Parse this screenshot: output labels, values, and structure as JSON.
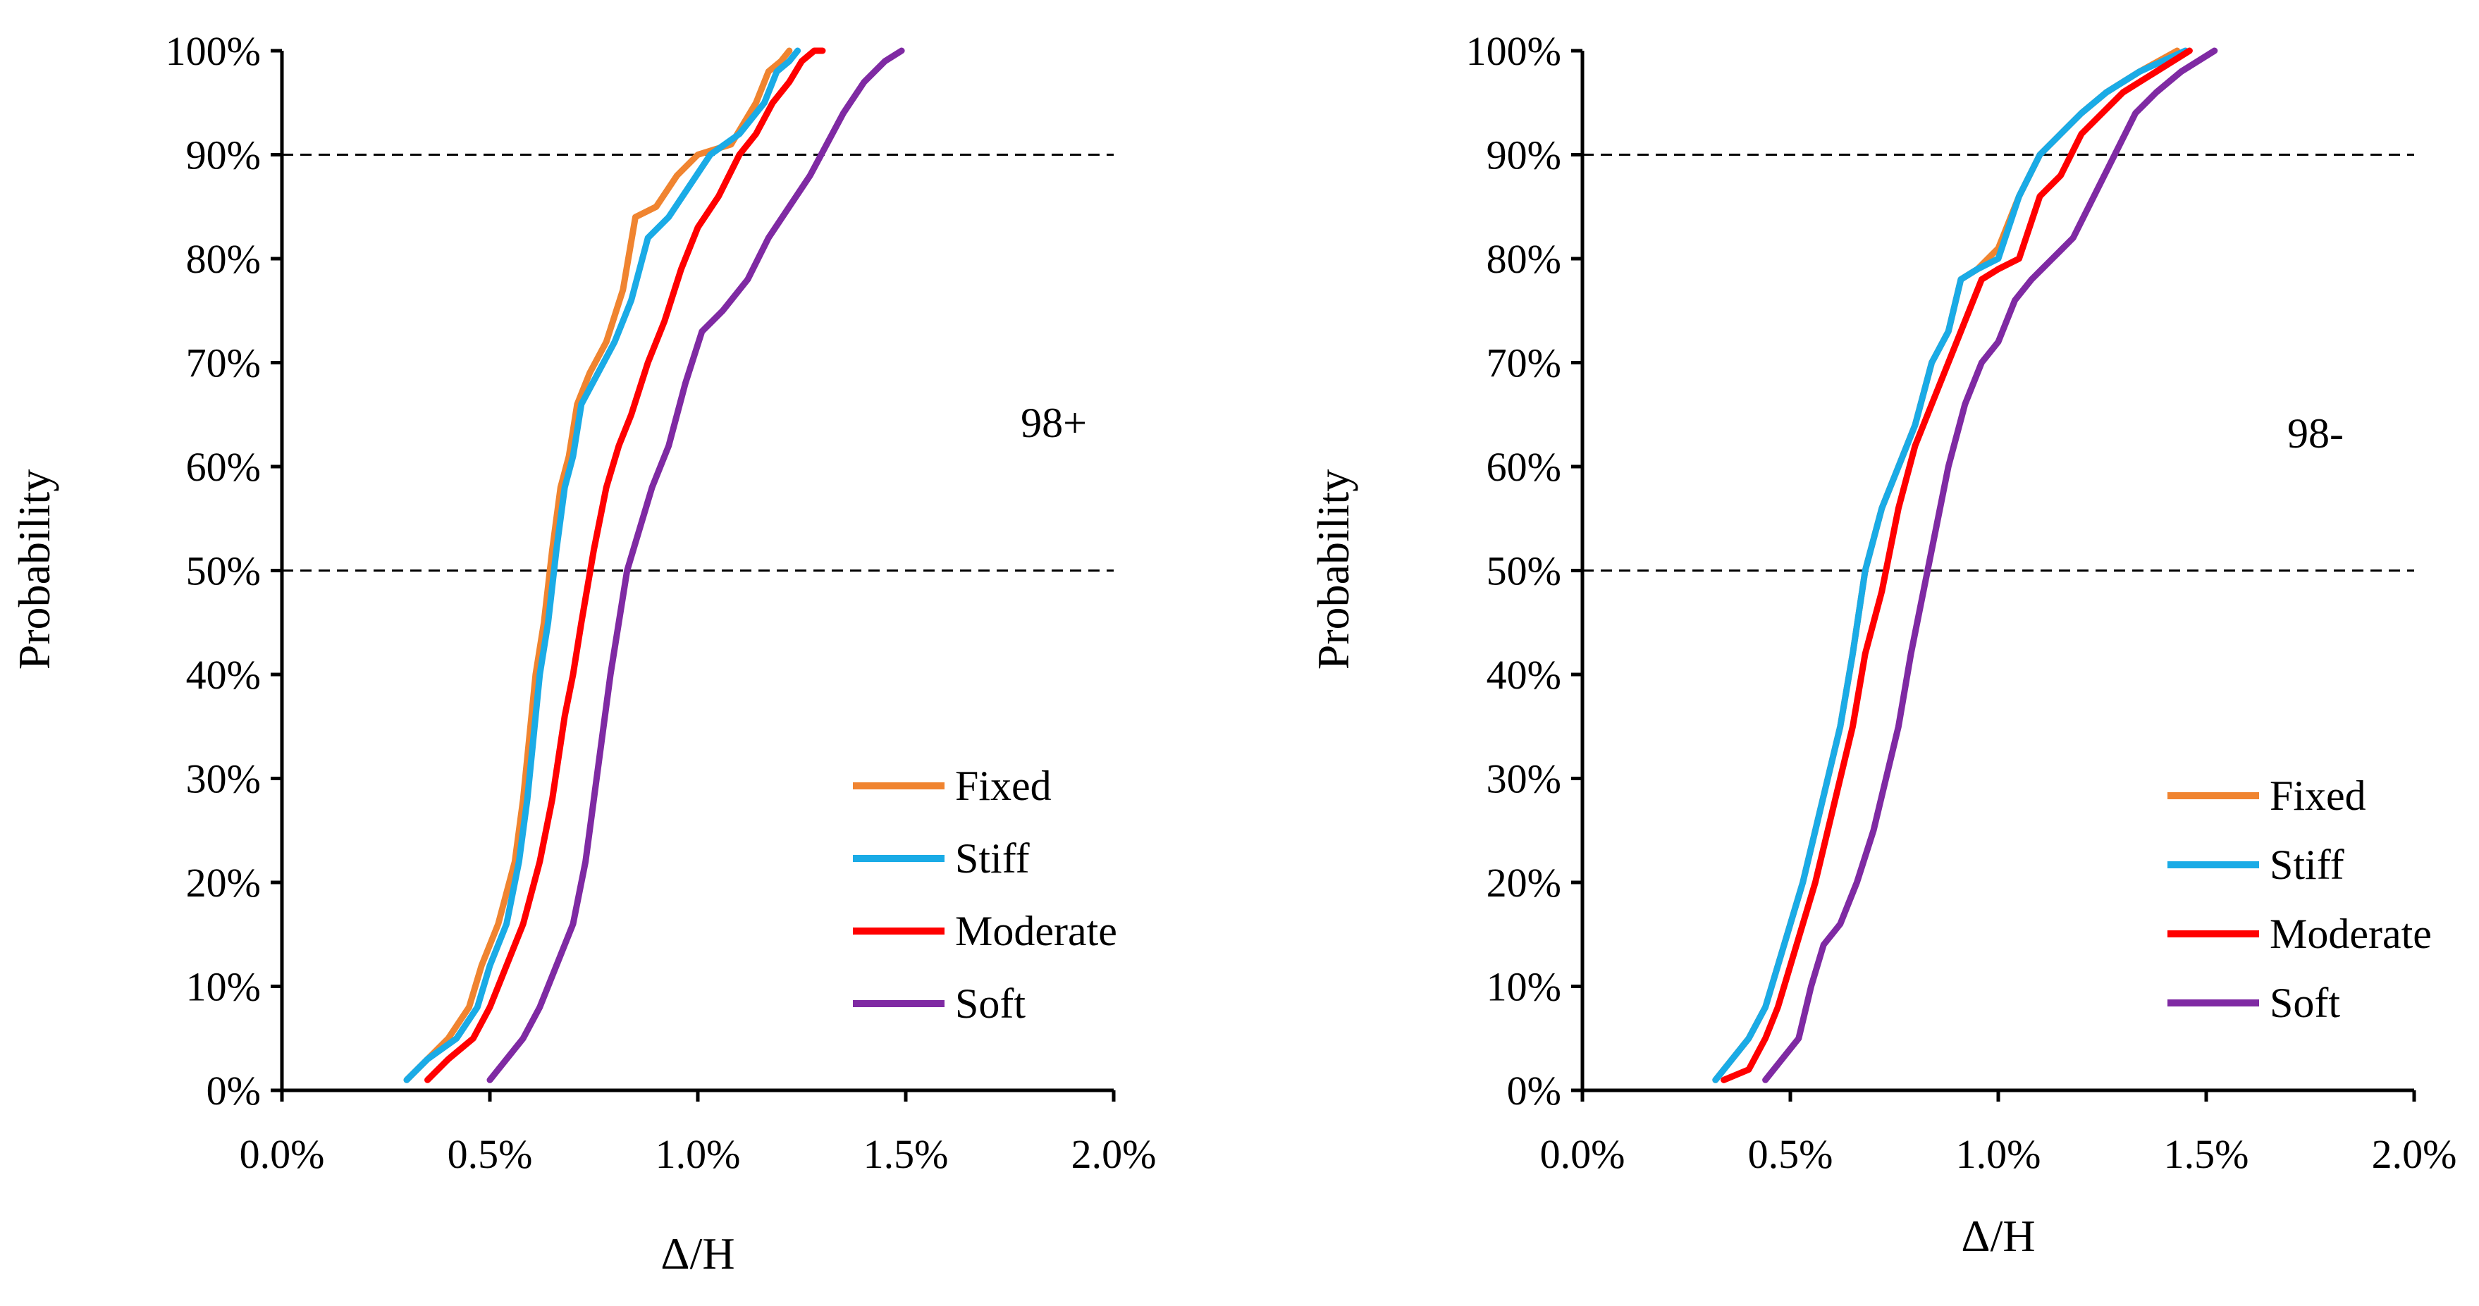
{
  "chart_data": [
    {
      "type": "line",
      "annotation": "98+",
      "xlabel": "Δ/H",
      "ylabel": "Probability",
      "xlim": [
        0,
        2
      ],
      "ylim": [
        0,
        100
      ],
      "x_ticks": [
        0.0,
        0.5,
        1.0,
        1.5,
        2.0
      ],
      "x_tick_labels": [
        "0.0%",
        "0.5%",
        "1.0%",
        "1.5%",
        "2.0%"
      ],
      "y_ticks": [
        0,
        10,
        20,
        30,
        40,
        50,
        60,
        70,
        80,
        90,
        100
      ],
      "y_tick_labels": [
        "0%",
        "10%",
        "20%",
        "30%",
        "40%",
        "50%",
        "60%",
        "70%",
        "80%",
        "90%",
        "100%"
      ],
      "reference_lines": [
        90,
        50
      ],
      "legend_position": "bottom-right",
      "series": [
        {
          "name": "Fixed",
          "color": "#F08430",
          "x": [
            0.3,
            0.35,
            0.4,
            0.45,
            0.48,
            0.52,
            0.56,
            0.58,
            0.6,
            0.61,
            0.63,
            0.65,
            0.67,
            0.69,
            0.71,
            0.74,
            0.78,
            0.82,
            0.85,
            0.9,
            0.95,
            1.0,
            1.08,
            1.14,
            1.17,
            1.2,
            1.22
          ],
          "y": [
            1,
            3,
            5,
            8,
            12,
            16,
            22,
            28,
            36,
            40,
            45,
            52,
            58,
            61,
            66,
            69,
            72,
            77,
            84,
            85,
            88,
            90,
            91,
            95,
            98,
            99,
            100
          ]
        },
        {
          "name": "Stiff",
          "color": "#1AABE6",
          "x": [
            0.3,
            0.35,
            0.42,
            0.47,
            0.5,
            0.54,
            0.57,
            0.59,
            0.61,
            0.62,
            0.64,
            0.66,
            0.68,
            0.7,
            0.72,
            0.76,
            0.8,
            0.84,
            0.88,
            0.93,
            0.98,
            1.03,
            1.1,
            1.16,
            1.19,
            1.22,
            1.24
          ],
          "y": [
            1,
            3,
            5,
            8,
            12,
            16,
            22,
            28,
            36,
            40,
            45,
            52,
            58,
            61,
            66,
            69,
            72,
            76,
            82,
            84,
            87,
            90,
            92,
            95,
            98,
            99,
            100
          ]
        },
        {
          "name": "Moderate",
          "color": "#FF0000",
          "x": [
            0.35,
            0.4,
            0.46,
            0.5,
            0.54,
            0.58,
            0.62,
            0.65,
            0.68,
            0.7,
            0.72,
            0.75,
            0.78,
            0.81,
            0.84,
            0.88,
            0.92,
            0.96,
            1.0,
            1.05,
            1.1,
            1.14,
            1.18,
            1.22,
            1.25,
            1.28,
            1.3
          ],
          "y": [
            1,
            3,
            5,
            8,
            12,
            16,
            22,
            28,
            36,
            40,
            45,
            52,
            58,
            62,
            65,
            70,
            74,
            79,
            83,
            86,
            90,
            92,
            95,
            97,
            99,
            100,
            100
          ]
        },
        {
          "name": "Soft",
          "color": "#7F2AA3",
          "x": [
            0.5,
            0.54,
            0.58,
            0.62,
            0.66,
            0.7,
            0.73,
            0.75,
            0.77,
            0.79,
            0.81,
            0.83,
            0.86,
            0.89,
            0.93,
            0.97,
            1.01,
            1.06,
            1.12,
            1.17,
            1.22,
            1.27,
            1.31,
            1.35,
            1.4,
            1.45,
            1.49
          ],
          "y": [
            1,
            3,
            5,
            8,
            12,
            16,
            22,
            28,
            34,
            40,
            45,
            50,
            54,
            58,
            62,
            68,
            73,
            75,
            78,
            82,
            85,
            88,
            91,
            94,
            97,
            99,
            100
          ]
        }
      ]
    },
    {
      "type": "line",
      "annotation": "98-",
      "xlabel": "Δ/H",
      "ylabel": "Probability",
      "xlim": [
        0,
        2
      ],
      "ylim": [
        0,
        100
      ],
      "x_ticks": [
        0.0,
        0.5,
        1.0,
        1.5,
        2.0
      ],
      "x_tick_labels": [
        "0.0%",
        "0.5%",
        "1.0%",
        "1.5%",
        "2.0%"
      ],
      "y_ticks": [
        0,
        10,
        20,
        30,
        40,
        50,
        60,
        70,
        80,
        90,
        100
      ],
      "y_tick_labels": [
        "0%",
        "10%",
        "20%",
        "30%",
        "40%",
        "50%",
        "60%",
        "70%",
        "80%",
        "90%",
        "100%"
      ],
      "reference_lines": [
        90,
        50
      ],
      "legend_position": "bottom-right",
      "series": [
        {
          "name": "Fixed",
          "color": "#F08430",
          "x": [
            0.32,
            0.36,
            0.4,
            0.44,
            0.47,
            0.5,
            0.53,
            0.56,
            0.59,
            0.62,
            0.65,
            0.68,
            0.72,
            0.76,
            0.8,
            0.84,
            0.88,
            0.91,
            0.95,
            1.0,
            1.05,
            1.1,
            1.15,
            1.2,
            1.26,
            1.34,
            1.43
          ],
          "y": [
            1,
            3,
            5,
            8,
            12,
            16,
            20,
            25,
            30,
            35,
            42,
            50,
            56,
            60,
            64,
            70,
            73,
            78,
            79,
            81,
            86,
            90,
            92,
            94,
            96,
            98,
            100
          ]
        },
        {
          "name": "Stiff",
          "color": "#1AABE6",
          "x": [
            0.32,
            0.36,
            0.4,
            0.44,
            0.47,
            0.5,
            0.53,
            0.56,
            0.59,
            0.62,
            0.65,
            0.68,
            0.72,
            0.76,
            0.8,
            0.84,
            0.88,
            0.91,
            0.95,
            1.0,
            1.05,
            1.1,
            1.15,
            1.2,
            1.26,
            1.34,
            1.45
          ],
          "y": [
            1,
            3,
            5,
            8,
            12,
            16,
            20,
            25,
            30,
            35,
            42,
            50,
            56,
            60,
            64,
            70,
            73,
            78,
            79,
            80,
            86,
            90,
            92,
            94,
            96,
            98,
            100
          ]
        },
        {
          "name": "Moderate",
          "color": "#FF0000",
          "x": [
            0.34,
            0.4,
            0.44,
            0.47,
            0.5,
            0.53,
            0.56,
            0.59,
            0.62,
            0.65,
            0.68,
            0.72,
            0.76,
            0.8,
            0.84,
            0.88,
            0.92,
            0.96,
            1.0,
            1.05,
            1.1,
            1.15,
            1.2,
            1.25,
            1.3,
            1.38,
            1.46
          ],
          "y": [
            1,
            2,
            5,
            8,
            12,
            16,
            20,
            25,
            30,
            35,
            42,
            48,
            56,
            62,
            66,
            70,
            74,
            78,
            79,
            80,
            86,
            88,
            92,
            94,
            96,
            98,
            100
          ]
        },
        {
          "name": "Soft",
          "color": "#7F2AA3",
          "x": [
            0.44,
            0.48,
            0.52,
            0.55,
            0.58,
            0.62,
            0.66,
            0.7,
            0.73,
            0.76,
            0.79,
            0.82,
            0.85,
            0.88,
            0.92,
            0.96,
            1.0,
            1.04,
            1.08,
            1.13,
            1.18,
            1.23,
            1.28,
            1.33,
            1.38,
            1.44,
            1.52
          ],
          "y": [
            1,
            3,
            5,
            10,
            14,
            16,
            20,
            25,
            30,
            35,
            42,
            48,
            54,
            60,
            66,
            70,
            72,
            76,
            78,
            80,
            82,
            86,
            90,
            94,
            96,
            98,
            100
          ]
        }
      ]
    }
  ]
}
